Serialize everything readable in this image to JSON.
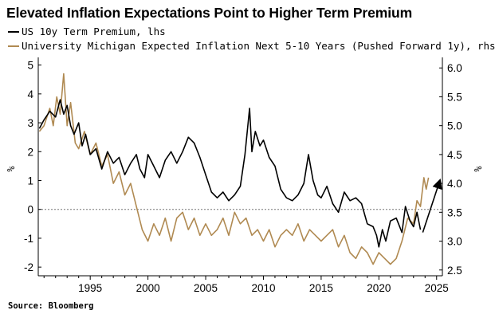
{
  "title": "Elevated Inflation Expectations Point to Higher Term Premium",
  "source": "Source: Bloomberg",
  "colors": {
    "term_premium": "#000000",
    "inflation": "#b08a52",
    "zero_line": "#777777"
  },
  "chart_data": {
    "type": "line",
    "title": "Elevated Inflation Expectations Point to Higher Term Premium",
    "grid": false,
    "legend_placement": "top-left",
    "x_range": [
      1990.5,
      2025.5
    ],
    "x_ticks": [
      "1995",
      "2000",
      "2005",
      "2010",
      "2015",
      "2020",
      "2025"
    ],
    "y_left": {
      "label": "%",
      "range": [
        -2.3,
        5.1
      ],
      "ticks": [
        "-2",
        "-1",
        "0",
        "1",
        "2",
        "3",
        "4",
        "5"
      ]
    },
    "y_right": {
      "label": "%",
      "range": [
        2.4,
        6.1
      ],
      "ticks": [
        "2.5",
        "3.0",
        "3.5",
        "4.0",
        "4.5",
        "5.0",
        "5.5",
        "6.0"
      ]
    },
    "series": [
      {
        "name": "US 10y Term Premium, lhs",
        "axis": "left",
        "color": "#000000",
        "points": [
          [
            1990.6,
            2.8
          ],
          [
            1991.0,
            3.1
          ],
          [
            1991.5,
            3.4
          ],
          [
            1992.0,
            3.2
          ],
          [
            1992.4,
            3.8
          ],
          [
            1992.7,
            3.3
          ],
          [
            1993.0,
            3.6
          ],
          [
            1993.3,
            2.9
          ],
          [
            1993.6,
            2.6
          ],
          [
            1994.0,
            3.0
          ],
          [
            1994.3,
            2.2
          ],
          [
            1994.6,
            2.6
          ],
          [
            1995.0,
            1.9
          ],
          [
            1995.5,
            2.1
          ],
          [
            1996.0,
            1.4
          ],
          [
            1996.5,
            2.0
          ],
          [
            1997.0,
            1.6
          ],
          [
            1997.5,
            1.8
          ],
          [
            1998.0,
            1.2
          ],
          [
            1998.5,
            1.6
          ],
          [
            1999.0,
            1.9
          ],
          [
            1999.3,
            1.4
          ],
          [
            1999.7,
            1.1
          ],
          [
            2000.0,
            1.9
          ],
          [
            2000.5,
            1.5
          ],
          [
            2001.0,
            1.1
          ],
          [
            2001.5,
            1.7
          ],
          [
            2002.0,
            2.0
          ],
          [
            2002.5,
            1.6
          ],
          [
            2003.0,
            2.0
          ],
          [
            2003.5,
            2.5
          ],
          [
            2004.0,
            2.3
          ],
          [
            2004.5,
            1.8
          ],
          [
            2005.0,
            1.2
          ],
          [
            2005.5,
            0.6
          ],
          [
            2006.0,
            0.4
          ],
          [
            2006.5,
            0.6
          ],
          [
            2007.0,
            0.3
          ],
          [
            2007.5,
            0.5
          ],
          [
            2008.0,
            0.8
          ],
          [
            2008.4,
            1.9
          ],
          [
            2008.8,
            3.5
          ],
          [
            2009.0,
            2.0
          ],
          [
            2009.3,
            2.7
          ],
          [
            2009.7,
            2.2
          ],
          [
            2010.0,
            2.4
          ],
          [
            2010.5,
            1.8
          ],
          [
            2011.0,
            1.5
          ],
          [
            2011.5,
            0.7
          ],
          [
            2012.0,
            0.4
          ],
          [
            2012.5,
            0.3
          ],
          [
            2013.0,
            0.5
          ],
          [
            2013.5,
            0.9
          ],
          [
            2013.9,
            1.9
          ],
          [
            2014.3,
            1.0
          ],
          [
            2014.7,
            0.5
          ],
          [
            2015.0,
            0.4
          ],
          [
            2015.5,
            0.8
          ],
          [
            2016.0,
            0.2
          ],
          [
            2016.5,
            -0.1
          ],
          [
            2017.0,
            0.6
          ],
          [
            2017.5,
            0.3
          ],
          [
            2018.0,
            0.4
          ],
          [
            2018.5,
            0.2
          ],
          [
            2019.0,
            -0.5
          ],
          [
            2019.5,
            -0.6
          ],
          [
            2019.8,
            -0.9
          ],
          [
            2020.0,
            -1.3
          ],
          [
            2020.3,
            -0.7
          ],
          [
            2020.6,
            -1.1
          ],
          [
            2021.0,
            -0.4
          ],
          [
            2021.5,
            -0.3
          ],
          [
            2022.0,
            -0.8
          ],
          [
            2022.3,
            0.1
          ],
          [
            2022.7,
            -0.4
          ],
          [
            2023.0,
            -0.6
          ],
          [
            2023.3,
            -0.1
          ],
          [
            2023.6,
            -0.7
          ]
        ]
      },
      {
        "name": "University Michigan Expected Inflation Next 5-10 Years (Pushed Forward 1y), rhs",
        "axis": "right",
        "color": "#b08a52",
        "points": [
          [
            1990.6,
            4.9
          ],
          [
            1991.0,
            5.0
          ],
          [
            1991.5,
            5.3
          ],
          [
            1991.8,
            5.0
          ],
          [
            1992.1,
            5.5
          ],
          [
            1992.4,
            5.2
          ],
          [
            1992.7,
            5.9
          ],
          [
            1993.0,
            5.0
          ],
          [
            1993.3,
            5.4
          ],
          [
            1993.7,
            4.7
          ],
          [
            1994.0,
            4.6
          ],
          [
            1994.5,
            4.9
          ],
          [
            1995.0,
            4.5
          ],
          [
            1995.5,
            4.7
          ],
          [
            1996.0,
            4.3
          ],
          [
            1996.5,
            4.5
          ],
          [
            1997.0,
            4.0
          ],
          [
            1997.5,
            4.2
          ],
          [
            1998.0,
            3.8
          ],
          [
            1998.5,
            4.0
          ],
          [
            1999.0,
            3.6
          ],
          [
            1999.5,
            3.2
          ],
          [
            2000.0,
            3.0
          ],
          [
            2000.5,
            3.3
          ],
          [
            2001.0,
            3.1
          ],
          [
            2001.5,
            3.4
          ],
          [
            2002.0,
            3.0
          ],
          [
            2002.5,
            3.4
          ],
          [
            2003.0,
            3.5
          ],
          [
            2003.5,
            3.2
          ],
          [
            2004.0,
            3.4
          ],
          [
            2004.5,
            3.1
          ],
          [
            2005.0,
            3.3
          ],
          [
            2005.5,
            3.1
          ],
          [
            2006.0,
            3.2
          ],
          [
            2006.5,
            3.4
          ],
          [
            2007.0,
            3.1
          ],
          [
            2007.5,
            3.5
          ],
          [
            2008.0,
            3.3
          ],
          [
            2008.5,
            3.4
          ],
          [
            2009.0,
            3.1
          ],
          [
            2009.5,
            3.2
          ],
          [
            2010.0,
            3.0
          ],
          [
            2010.5,
            3.2
          ],
          [
            2011.0,
            2.9
          ],
          [
            2011.5,
            3.1
          ],
          [
            2012.0,
            3.2
          ],
          [
            2012.5,
            3.1
          ],
          [
            2013.0,
            3.3
          ],
          [
            2013.5,
            3.0
          ],
          [
            2014.0,
            3.2
          ],
          [
            2014.5,
            3.1
          ],
          [
            2015.0,
            3.0
          ],
          [
            2015.5,
            3.1
          ],
          [
            2016.0,
            3.2
          ],
          [
            2016.5,
            2.9
          ],
          [
            2017.0,
            3.1
          ],
          [
            2017.5,
            2.8
          ],
          [
            2018.0,
            2.7
          ],
          [
            2018.5,
            2.9
          ],
          [
            2019.0,
            2.8
          ],
          [
            2019.5,
            2.6
          ],
          [
            2020.0,
            2.8
          ],
          [
            2020.5,
            2.7
          ],
          [
            2021.0,
            2.6
          ],
          [
            2021.5,
            2.7
          ],
          [
            2022.0,
            3.0
          ],
          [
            2022.5,
            3.4
          ],
          [
            2023.0,
            3.3
          ],
          [
            2023.3,
            3.7
          ],
          [
            2023.6,
            3.6
          ],
          [
            2023.9,
            4.1
          ],
          [
            2024.1,
            3.9
          ],
          [
            2024.3,
            4.1
          ]
        ]
      }
    ],
    "annotations": [
      {
        "type": "arrow",
        "from": [
          2023.8,
          -0.8
        ],
        "to": [
          2025.2,
          0.9
        ],
        "axis": "left"
      }
    ]
  }
}
